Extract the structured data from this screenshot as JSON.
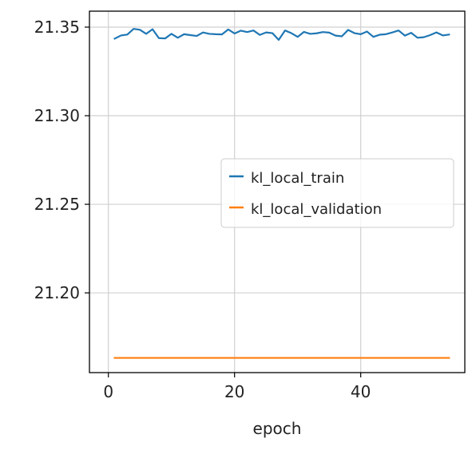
{
  "chart_data": {
    "type": "line",
    "title": "",
    "xlabel": "epoch",
    "ylabel": "",
    "xlim": [
      -3,
      56.5
    ],
    "ylim": [
      21.155,
      21.359
    ],
    "xticks": [
      0,
      20,
      40
    ],
    "xtick_labels": [
      "0",
      "20",
      "40"
    ],
    "yticks": [
      21.2,
      21.25,
      21.3,
      21.35
    ],
    "ytick_labels": [
      "21.20",
      "21.25",
      "21.30",
      "21.35"
    ],
    "grid": true,
    "legend_position": "center-right",
    "series": [
      {
        "name": "kl_local_train",
        "color": "#1f77b4",
        "x": [
          1,
          2,
          3,
          4,
          5,
          6,
          7,
          8,
          9,
          10,
          11,
          12,
          13,
          14,
          15,
          16,
          17,
          18,
          19,
          20,
          21,
          22,
          23,
          24,
          25,
          26,
          27,
          28,
          29,
          30,
          31,
          32,
          33,
          34,
          35,
          36,
          37,
          38,
          39,
          40,
          41,
          42,
          43,
          44,
          45,
          46,
          47,
          48,
          49,
          50,
          51,
          52,
          53,
          54
        ],
        "values": [
          21.3435,
          21.3453,
          21.3458,
          21.349,
          21.3485,
          21.3462,
          21.3488,
          21.3438,
          21.3436,
          21.3462,
          21.344,
          21.346,
          21.3455,
          21.345,
          21.347,
          21.3462,
          21.346,
          21.3459,
          21.3487,
          21.3464,
          21.348,
          21.3472,
          21.3481,
          21.3456,
          21.347,
          21.3466,
          21.3428,
          21.3481,
          21.3466,
          21.3445,
          21.3473,
          21.3462,
          21.3465,
          21.3472,
          21.3469,
          21.3452,
          21.3448,
          21.3484,
          21.3466,
          21.346,
          21.3475,
          21.3445,
          21.3457,
          21.346,
          21.347,
          21.3481,
          21.3452,
          21.3468,
          21.344,
          21.3443,
          21.3455,
          21.347,
          21.3453,
          21.3458
        ]
      },
      {
        "name": "kl_local_validation",
        "color": "#ff7f0e",
        "x": [
          1,
          54
        ],
        "values": [
          21.1633,
          21.1633
        ]
      }
    ]
  }
}
